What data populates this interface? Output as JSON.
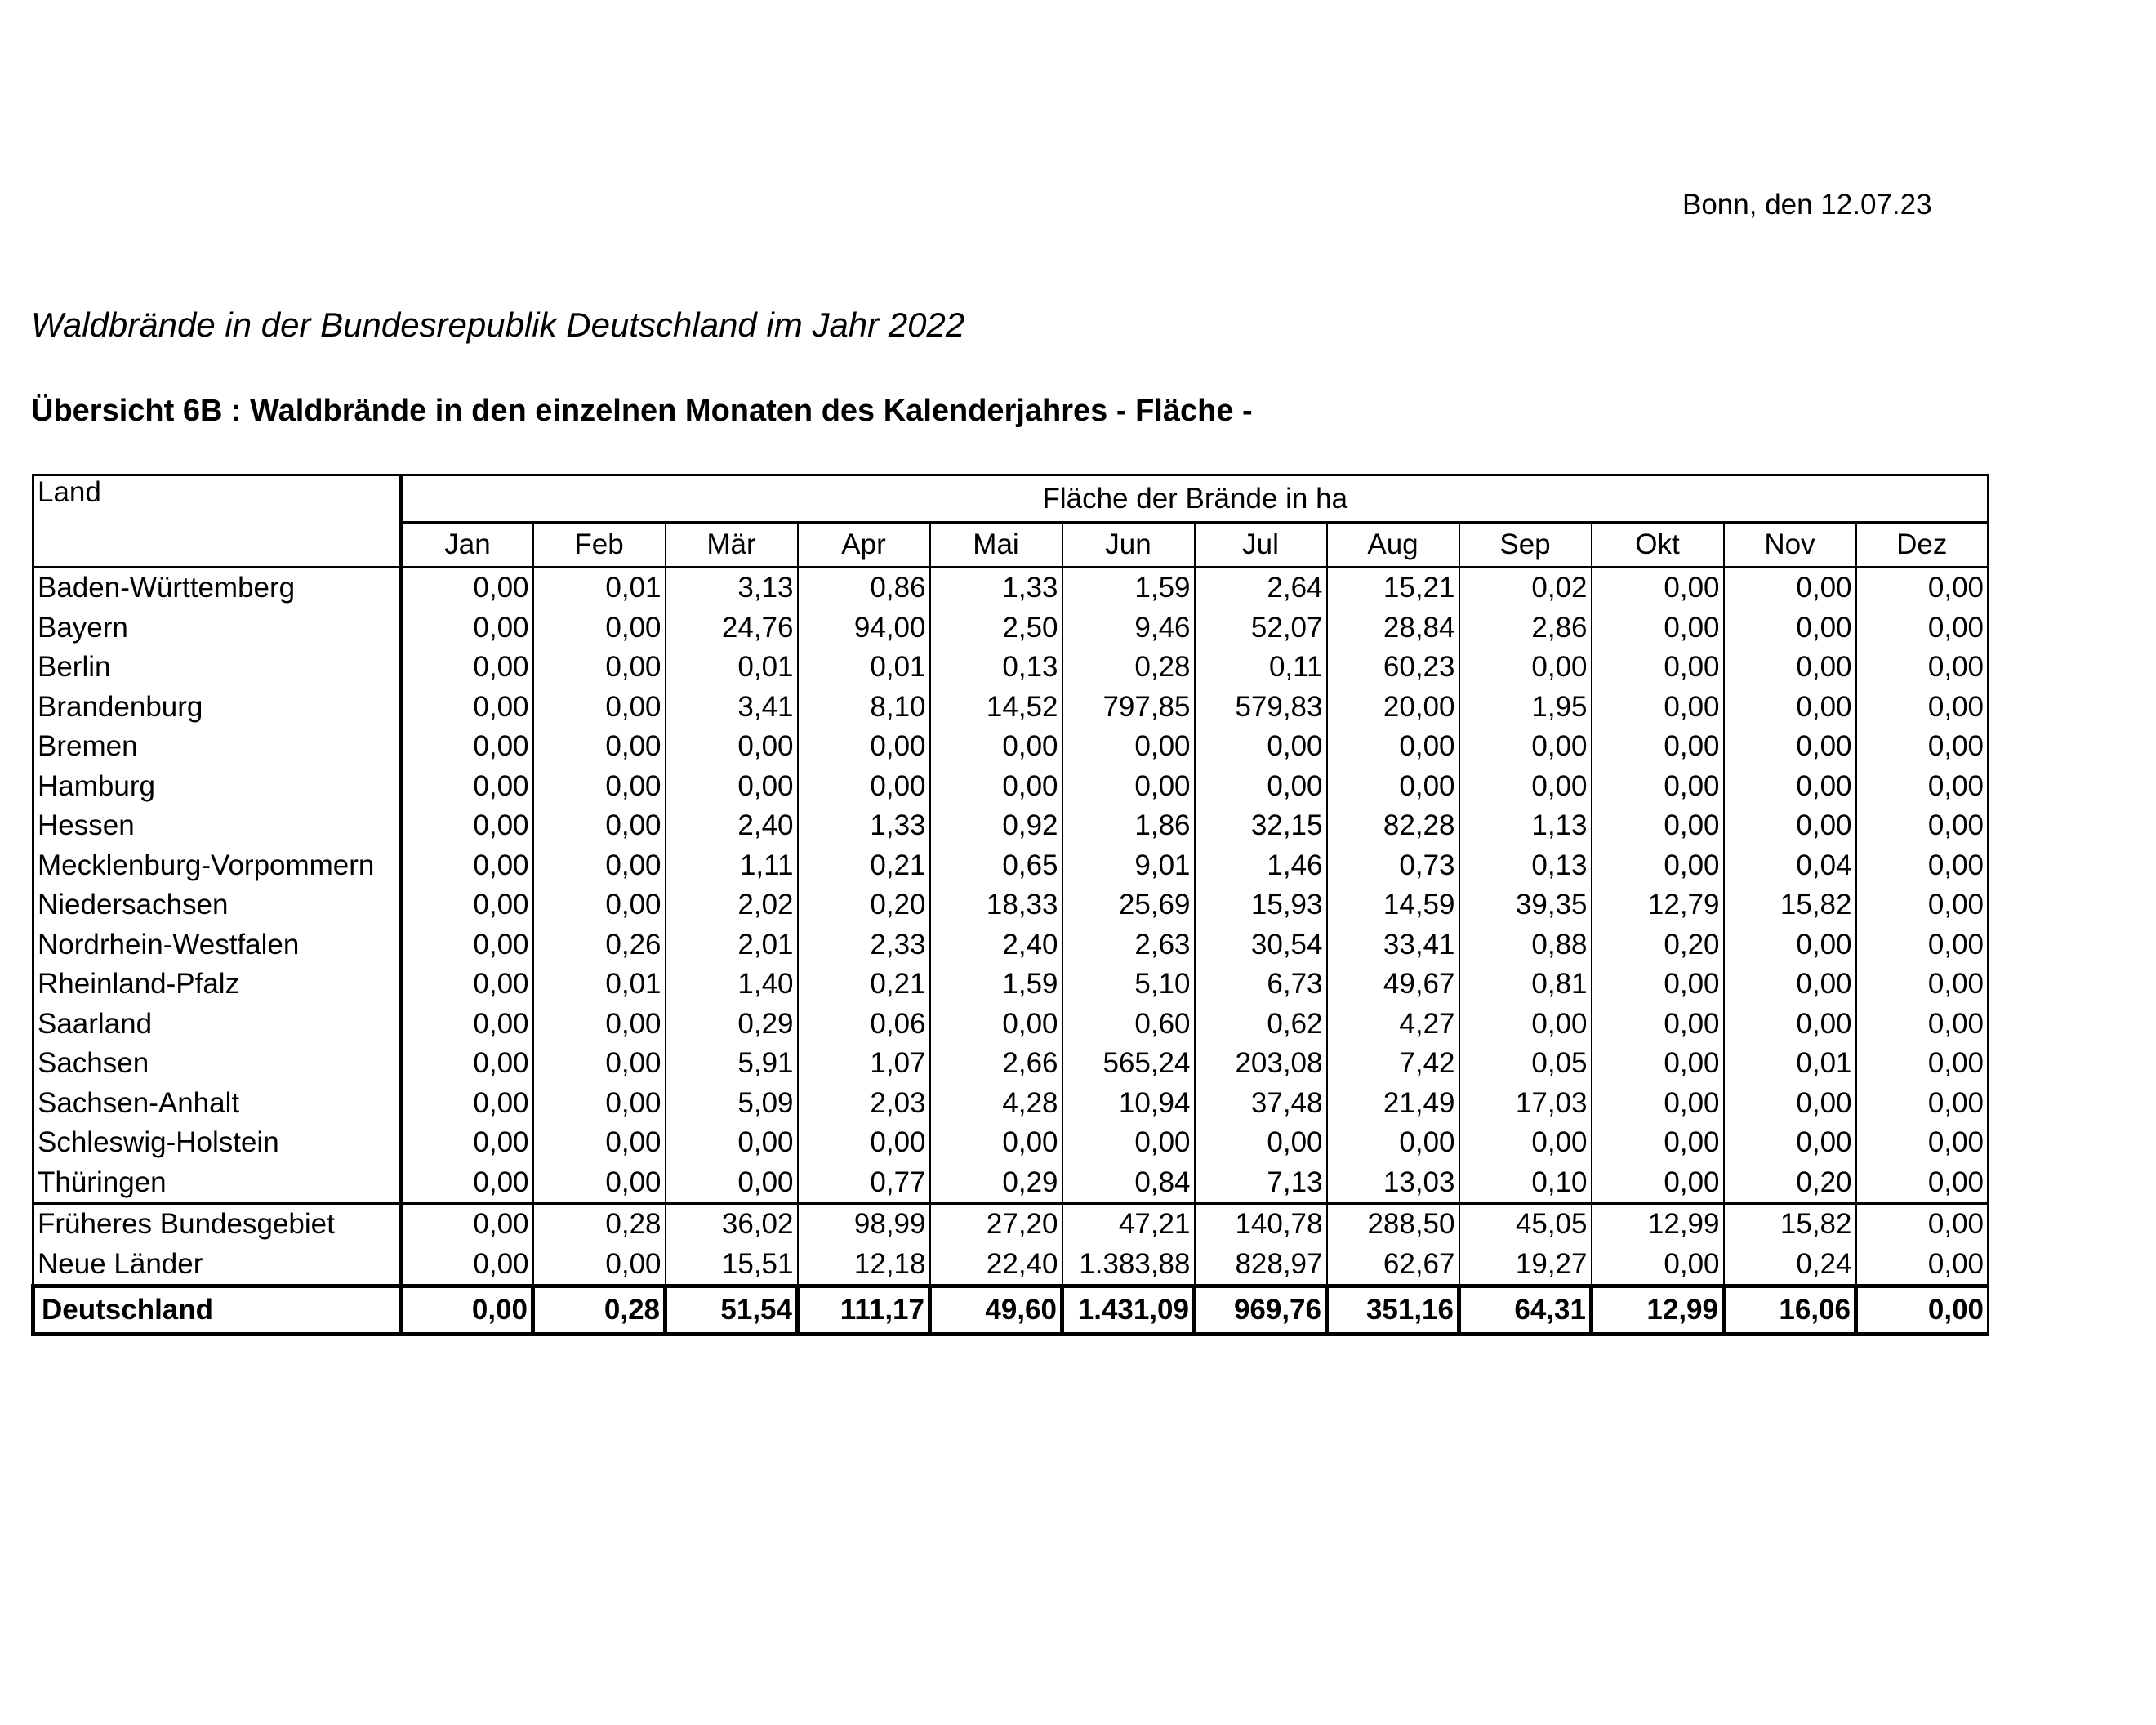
{
  "header": {
    "date": "Bonn, den 12.07.23",
    "title": "Waldbrände in der Bundesrepublik Deutschland im Jahr 2022",
    "subtitle": "Übersicht 6B : Waldbrände in den einzelnen Monaten des Kalenderjahres - Fläche -"
  },
  "table": {
    "land_label": "Land",
    "group_label": "Fläche der Brände in ha",
    "months": [
      "Jan",
      "Feb",
      "Mär",
      "Apr",
      "Mai",
      "Jun",
      "Jul",
      "Aug",
      "Sep",
      "Okt",
      "Nov",
      "Dez"
    ],
    "states": [
      {
        "name": "Baden-Württemberg",
        "values": [
          "0,00",
          "0,01",
          "3,13",
          "0,86",
          "1,33",
          "1,59",
          "2,64",
          "15,21",
          "0,02",
          "0,00",
          "0,00",
          "0,00"
        ]
      },
      {
        "name": "Bayern",
        "values": [
          "0,00",
          "0,00",
          "24,76",
          "94,00",
          "2,50",
          "9,46",
          "52,07",
          "28,84",
          "2,86",
          "0,00",
          "0,00",
          "0,00"
        ]
      },
      {
        "name": "Berlin",
        "values": [
          "0,00",
          "0,00",
          "0,01",
          "0,01",
          "0,13",
          "0,28",
          "0,11",
          "60,23",
          "0,00",
          "0,00",
          "0,00",
          "0,00"
        ]
      },
      {
        "name": "Brandenburg",
        "values": [
          "0,00",
          "0,00",
          "3,41",
          "8,10",
          "14,52",
          "797,85",
          "579,83",
          "20,00",
          "1,95",
          "0,00",
          "0,00",
          "0,00"
        ]
      },
      {
        "name": "Bremen",
        "values": [
          "0,00",
          "0,00",
          "0,00",
          "0,00",
          "0,00",
          "0,00",
          "0,00",
          "0,00",
          "0,00",
          "0,00",
          "0,00",
          "0,00"
        ]
      },
      {
        "name": "Hamburg",
        "values": [
          "0,00",
          "0,00",
          "0,00",
          "0,00",
          "0,00",
          "0,00",
          "0,00",
          "0,00",
          "0,00",
          "0,00",
          "0,00",
          "0,00"
        ]
      },
      {
        "name": "Hessen",
        "values": [
          "0,00",
          "0,00",
          "2,40",
          "1,33",
          "0,92",
          "1,86",
          "32,15",
          "82,28",
          "1,13",
          "0,00",
          "0,00",
          "0,00"
        ]
      },
      {
        "name": "Mecklenburg-Vorpommern",
        "values": [
          "0,00",
          "0,00",
          "1,11",
          "0,21",
          "0,65",
          "9,01",
          "1,46",
          "0,73",
          "0,13",
          "0,00",
          "0,04",
          "0,00"
        ]
      },
      {
        "name": "Niedersachsen",
        "values": [
          "0,00",
          "0,00",
          "2,02",
          "0,20",
          "18,33",
          "25,69",
          "15,93",
          "14,59",
          "39,35",
          "12,79",
          "15,82",
          "0,00"
        ]
      },
      {
        "name": "Nordrhein-Westfalen",
        "values": [
          "0,00",
          "0,26",
          "2,01",
          "2,33",
          "2,40",
          "2,63",
          "30,54",
          "33,41",
          "0,88",
          "0,20",
          "0,00",
          "0,00"
        ]
      },
      {
        "name": "Rheinland-Pfalz",
        "values": [
          "0,00",
          "0,01",
          "1,40",
          "0,21",
          "1,59",
          "5,10",
          "6,73",
          "49,67",
          "0,81",
          "0,00",
          "0,00",
          "0,00"
        ]
      },
      {
        "name": "Saarland",
        "values": [
          "0,00",
          "0,00",
          "0,29",
          "0,06",
          "0,00",
          "0,60",
          "0,62",
          "4,27",
          "0,00",
          "0,00",
          "0,00",
          "0,00"
        ]
      },
      {
        "name": "Sachsen",
        "values": [
          "0,00",
          "0,00",
          "5,91",
          "1,07",
          "2,66",
          "565,24",
          "203,08",
          "7,42",
          "0,05",
          "0,00",
          "0,01",
          "0,00"
        ]
      },
      {
        "name": "Sachsen-Anhalt",
        "values": [
          "0,00",
          "0,00",
          "5,09",
          "2,03",
          "4,28",
          "10,94",
          "37,48",
          "21,49",
          "17,03",
          "0,00",
          "0,00",
          "0,00"
        ]
      },
      {
        "name": "Schleswig-Holstein",
        "values": [
          "0,00",
          "0,00",
          "0,00",
          "0,00",
          "0,00",
          "0,00",
          "0,00",
          "0,00",
          "0,00",
          "0,00",
          "0,00",
          "0,00"
        ]
      },
      {
        "name": "Thüringen",
        "values": [
          "0,00",
          "0,00",
          "0,00",
          "0,77",
          "0,29",
          "0,84",
          "7,13",
          "13,03",
          "0,10",
          "0,00",
          "0,20",
          "0,00"
        ]
      }
    ],
    "regions": [
      {
        "name": "Früheres Bundesgebiet",
        "values": [
          "0,00",
          "0,28",
          "36,02",
          "98,99",
          "27,20",
          "47,21",
          "140,78",
          "288,50",
          "45,05",
          "12,99",
          "15,82",
          "0,00"
        ]
      },
      {
        "name": "Neue Länder",
        "values": [
          "0,00",
          "0,00",
          "15,51",
          "12,18",
          "22,40",
          "1.383,88",
          "828,97",
          "62,67",
          "19,27",
          "0,00",
          "0,24",
          "0,00"
        ]
      }
    ],
    "total": {
      "name": "Deutschland",
      "values": [
        "0,00",
        "0,28",
        "51,54",
        "111,17",
        "49,60",
        "1.431,09",
        "969,76",
        "351,16",
        "64,31",
        "12,99",
        "16,06",
        "0,00"
      ]
    }
  }
}
